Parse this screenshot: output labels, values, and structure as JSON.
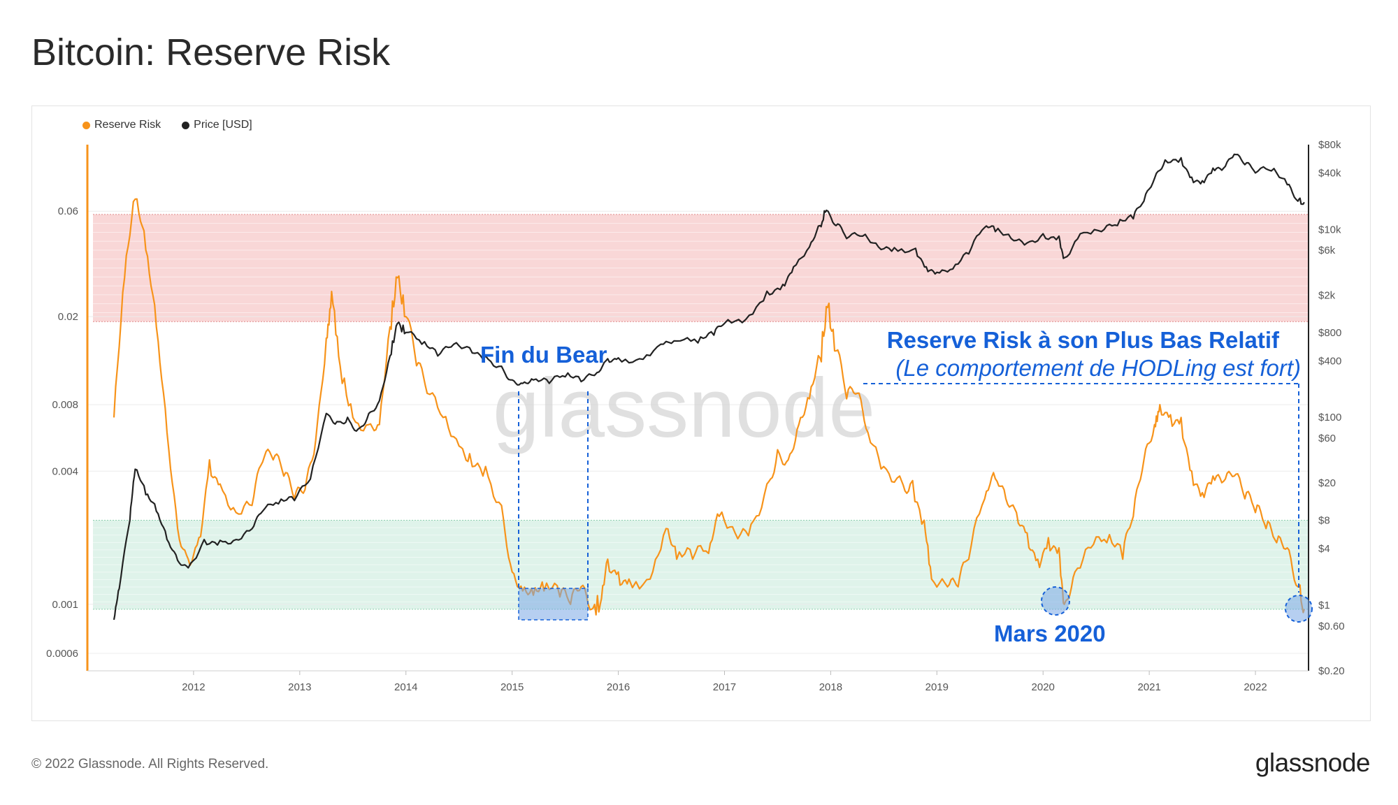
{
  "page": {
    "title": "Bitcoin: Reserve Risk",
    "copyright": "© 2022 Glassnode. All Rights Reserved.",
    "logo": "glassnode",
    "watermark": "glassnode"
  },
  "legend": [
    {
      "label": "Reserve Risk",
      "color": "#f7931a"
    },
    {
      "label": "Price [USD]",
      "color": "#222222"
    }
  ],
  "annotations": {
    "fin_bear": "Fin du Bear",
    "rr_low_line1": "Reserve Risk à son Plus Bas Relatif",
    "rr_low_line2": "(Le comportement de HODLing est fort)",
    "mars_2020": "Mars 2020"
  },
  "chart_data": {
    "type": "line",
    "title": "Bitcoin: Reserve Risk",
    "x_ticks": [
      "2012",
      "2013",
      "2014",
      "2015",
      "2016",
      "2017",
      "2018",
      "2019",
      "2020",
      "2021",
      "2022"
    ],
    "y_left": {
      "scale": "log",
      "ticks": [
        "0.06",
        "0.02",
        "0.008",
        "0.004",
        "0.001",
        "0.0006"
      ],
      "tick_values": [
        0.06,
        0.02,
        0.008,
        0.004,
        0.001,
        0.0006
      ],
      "range": [
        0.0005,
        0.12
      ]
    },
    "y_right": {
      "scale": "log",
      "ticks": [
        "$80k",
        "$40k",
        "$10k",
        "$6k",
        "$2k",
        "$800",
        "$400",
        "$100",
        "$60",
        "$20",
        "$8",
        "$4",
        "$1",
        "$0.60",
        "$0.20"
      ],
      "tick_values": [
        80000,
        40000,
        10000,
        6000,
        2000,
        800,
        400,
        100,
        60,
        20,
        8,
        4,
        1,
        0.6,
        0.2
      ],
      "range": [
        0.2,
        80000
      ]
    },
    "bands": [
      {
        "name": "high",
        "from": 0.019,
        "to": 0.058,
        "color": "#f9d7d7"
      },
      {
        "name": "low",
        "from": 0.00095,
        "to": 0.0024,
        "color": "#dff3ea"
      }
    ],
    "series": [
      {
        "name": "Reserve Risk",
        "color": "#f7931a",
        "axis": "left",
        "points": [
          [
            2011.25,
            0.007
          ],
          [
            2011.35,
            0.03
          ],
          [
            2011.45,
            0.068
          ],
          [
            2011.55,
            0.04
          ],
          [
            2011.65,
            0.018
          ],
          [
            2011.75,
            0.006
          ],
          [
            2011.85,
            0.0022
          ],
          [
            2011.95,
            0.0016
          ],
          [
            2012.05,
            0.002
          ],
          [
            2012.15,
            0.0045
          ],
          [
            2012.25,
            0.0035
          ],
          [
            2012.4,
            0.0026
          ],
          [
            2012.55,
            0.0028
          ],
          [
            2012.65,
            0.0044
          ],
          [
            2012.75,
            0.0045
          ],
          [
            2012.85,
            0.0038
          ],
          [
            2012.95,
            0.003
          ],
          [
            2013.05,
            0.0033
          ],
          [
            2013.15,
            0.0055
          ],
          [
            2013.25,
            0.016
          ],
          [
            2013.3,
            0.026
          ],
          [
            2013.38,
            0.012
          ],
          [
            2013.5,
            0.007
          ],
          [
            2013.65,
            0.0065
          ],
          [
            2013.75,
            0.0065
          ],
          [
            2013.85,
            0.018
          ],
          [
            2013.92,
            0.03
          ],
          [
            2014.0,
            0.02
          ],
          [
            2014.1,
            0.012
          ],
          [
            2014.2,
            0.009
          ],
          [
            2014.35,
            0.007
          ],
          [
            2014.5,
            0.0052
          ],
          [
            2014.6,
            0.0048
          ],
          [
            2014.75,
            0.0042
          ],
          [
            2014.9,
            0.0028
          ],
          [
            2015.0,
            0.0014
          ],
          [
            2015.1,
            0.00115
          ],
          [
            2015.2,
            0.0011
          ],
          [
            2015.3,
            0.00115
          ],
          [
            2015.45,
            0.00108
          ],
          [
            2015.55,
            0.001
          ],
          [
            2015.65,
            0.0012
          ],
          [
            2015.75,
            0.00095
          ],
          [
            2015.83,
            0.001
          ],
          [
            2015.9,
            0.0016
          ],
          [
            2016.0,
            0.0014
          ],
          [
            2016.1,
            0.0013
          ],
          [
            2016.3,
            0.0013
          ],
          [
            2016.45,
            0.0022
          ],
          [
            2016.55,
            0.0016
          ],
          [
            2016.7,
            0.0016
          ],
          [
            2016.85,
            0.0017
          ],
          [
            2016.95,
            0.0025
          ],
          [
            2017.1,
            0.0021
          ],
          [
            2017.25,
            0.0023
          ],
          [
            2017.4,
            0.0035
          ],
          [
            2017.5,
            0.005
          ],
          [
            2017.6,
            0.0045
          ],
          [
            2017.7,
            0.0065
          ],
          [
            2017.8,
            0.0085
          ],
          [
            2017.9,
            0.013
          ],
          [
            2017.97,
            0.022
          ],
          [
            2018.05,
            0.014
          ],
          [
            2018.15,
            0.0085
          ],
          [
            2018.25,
            0.009
          ],
          [
            2018.35,
            0.006
          ],
          [
            2018.5,
            0.0042
          ],
          [
            2018.65,
            0.0038
          ],
          [
            2018.75,
            0.0035
          ],
          [
            2018.88,
            0.0024
          ],
          [
            2018.95,
            0.0013
          ],
          [
            2019.1,
            0.0012
          ],
          [
            2019.2,
            0.0012
          ],
          [
            2019.3,
            0.0016
          ],
          [
            2019.45,
            0.003
          ],
          [
            2019.55,
            0.0037
          ],
          [
            2019.65,
            0.003
          ],
          [
            2019.75,
            0.0026
          ],
          [
            2019.85,
            0.0021
          ],
          [
            2019.95,
            0.0016
          ],
          [
            2020.05,
            0.002
          ],
          [
            2020.15,
            0.0018
          ],
          [
            2020.2,
            0.001
          ],
          [
            2020.3,
            0.0014
          ],
          [
            2020.45,
            0.0018
          ],
          [
            2020.6,
            0.0019
          ],
          [
            2020.75,
            0.0016
          ],
          [
            2020.85,
            0.0025
          ],
          [
            2020.95,
            0.0045
          ],
          [
            2021.05,
            0.0065
          ],
          [
            2021.1,
            0.008
          ],
          [
            2021.2,
            0.0072
          ],
          [
            2021.3,
            0.007
          ],
          [
            2021.4,
            0.004
          ],
          [
            2021.5,
            0.0032
          ],
          [
            2021.6,
            0.0038
          ],
          [
            2021.7,
            0.0036
          ],
          [
            2021.8,
            0.0038
          ],
          [
            2021.9,
            0.003
          ],
          [
            2022.0,
            0.0026
          ],
          [
            2022.1,
            0.0022
          ],
          [
            2022.2,
            0.0019
          ],
          [
            2022.3,
            0.0018
          ],
          [
            2022.4,
            0.0012
          ],
          [
            2022.46,
            0.00095
          ]
        ]
      },
      {
        "name": "Price [USD]",
        "color": "#222222",
        "axis": "right",
        "points": [
          [
            2011.25,
            0.7
          ],
          [
            2011.3,
            1.5
          ],
          [
            2011.4,
            8
          ],
          [
            2011.45,
            28
          ],
          [
            2011.55,
            15
          ],
          [
            2011.65,
            10
          ],
          [
            2011.75,
            5
          ],
          [
            2011.85,
            3
          ],
          [
            2011.95,
            2.5
          ],
          [
            2012.1,
            5
          ],
          [
            2012.25,
            4.9
          ],
          [
            2012.4,
            5
          ],
          [
            2012.55,
            6.5
          ],
          [
            2012.65,
            10
          ],
          [
            2012.8,
            12
          ],
          [
            2012.95,
            13
          ],
          [
            2013.1,
            22
          ],
          [
            2013.25,
            110
          ],
          [
            2013.35,
            90
          ],
          [
            2013.45,
            100
          ],
          [
            2013.55,
            75
          ],
          [
            2013.65,
            110
          ],
          [
            2013.75,
            150
          ],
          [
            2013.85,
            450
          ],
          [
            2013.92,
            1000
          ],
          [
            2014.0,
            800
          ],
          [
            2014.15,
            600
          ],
          [
            2014.3,
            450
          ],
          [
            2014.45,
            600
          ],
          [
            2014.6,
            550
          ],
          [
            2014.75,
            450
          ],
          [
            2014.9,
            350
          ],
          [
            2015.0,
            250
          ],
          [
            2015.1,
            230
          ],
          [
            2015.2,
            250
          ],
          [
            2015.35,
            230
          ],
          [
            2015.5,
            270
          ],
          [
            2015.65,
            240
          ],
          [
            2015.8,
            300
          ],
          [
            2015.9,
            420
          ],
          [
            2016.0,
            430
          ],
          [
            2016.2,
            420
          ],
          [
            2016.4,
            600
          ],
          [
            2016.55,
            650
          ],
          [
            2016.75,
            620
          ],
          [
            2016.9,
            750
          ],
          [
            2017.0,
            1000
          ],
          [
            2017.2,
            1100
          ],
          [
            2017.4,
            2200
          ],
          [
            2017.55,
            2600
          ],
          [
            2017.65,
            4000
          ],
          [
            2017.8,
            6500
          ],
          [
            2017.9,
            11000
          ],
          [
            2017.96,
            16000
          ],
          [
            2018.05,
            11000
          ],
          [
            2018.15,
            8000
          ],
          [
            2018.3,
            8500
          ],
          [
            2018.45,
            6500
          ],
          [
            2018.6,
            6400
          ],
          [
            2018.8,
            6300
          ],
          [
            2018.9,
            4000
          ],
          [
            2019.0,
            3500
          ],
          [
            2019.15,
            3800
          ],
          [
            2019.3,
            5500
          ],
          [
            2019.45,
            10500
          ],
          [
            2019.55,
            9500
          ],
          [
            2019.7,
            8000
          ],
          [
            2019.85,
            7200
          ],
          [
            2020.0,
            9000
          ],
          [
            2020.15,
            8500
          ],
          [
            2020.2,
            5000
          ],
          [
            2020.35,
            9000
          ],
          [
            2020.55,
            9500
          ],
          [
            2020.7,
            11000
          ],
          [
            2020.85,
            13000
          ],
          [
            2020.95,
            20000
          ],
          [
            2021.05,
            35000
          ],
          [
            2021.15,
            55000
          ],
          [
            2021.3,
            58000
          ],
          [
            2021.4,
            36000
          ],
          [
            2021.5,
            33000
          ],
          [
            2021.6,
            45000
          ],
          [
            2021.7,
            45000
          ],
          [
            2021.8,
            63000
          ],
          [
            2021.9,
            49000
          ],
          [
            2022.0,
            40000
          ],
          [
            2022.15,
            42000
          ],
          [
            2022.3,
            30000
          ],
          [
            2022.4,
            20000
          ],
          [
            2022.46,
            19500
          ]
        ]
      }
    ]
  }
}
